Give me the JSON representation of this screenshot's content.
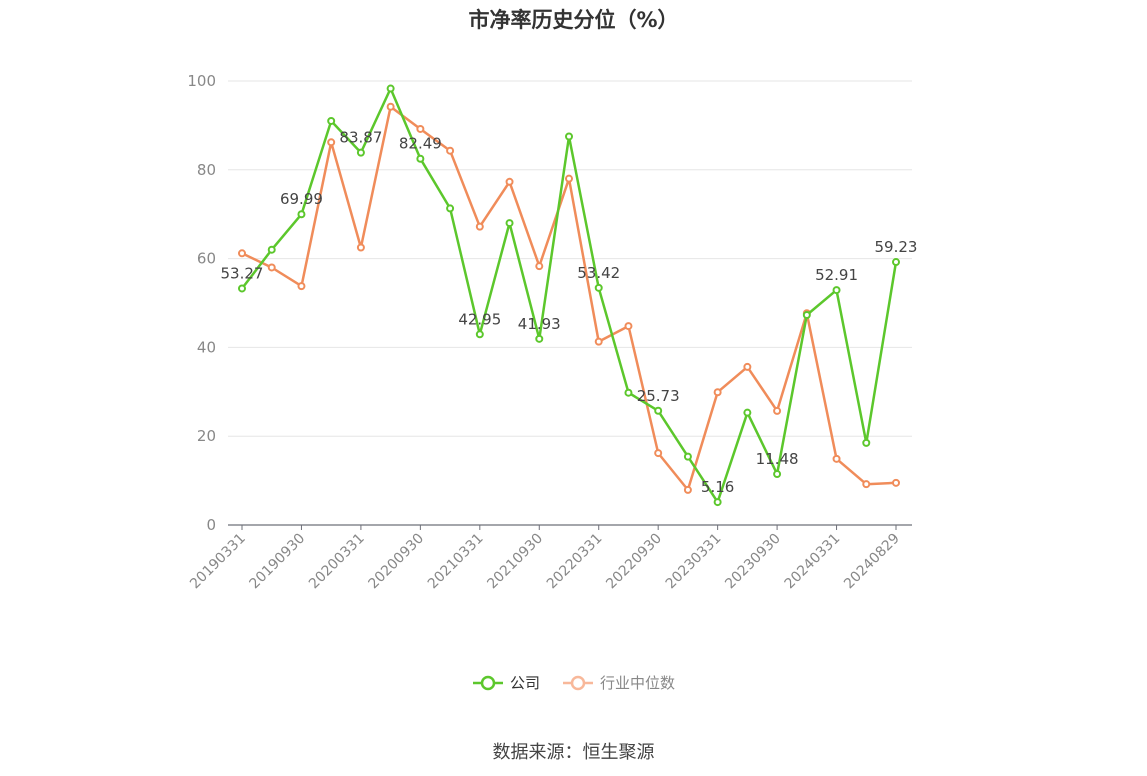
{
  "chart_data": {
    "type": "line",
    "title": "市净率历史分位（%）",
    "xlabel": "",
    "ylabel": "",
    "ylim": [
      0,
      100
    ],
    "yticks": [
      0,
      20,
      40,
      60,
      80,
      100
    ],
    "grid": true,
    "legend_position": "bottom",
    "x": [
      "20190331",
      "20190630",
      "20190930",
      "20191231",
      "20200331",
      "20200630",
      "20200930",
      "20201231",
      "20210331",
      "20210630",
      "20210930",
      "20211231",
      "20220331",
      "20220630",
      "20220930",
      "20221231",
      "20230331",
      "20230630",
      "20230930",
      "20231231",
      "20240331",
      "20240630",
      "20240829"
    ],
    "x_tick_labels": [
      "20190331",
      "20190930",
      "20200331",
      "20200930",
      "20210331",
      "20210930",
      "20220331",
      "20220930",
      "20230331",
      "20230930",
      "20240331",
      "20240829"
    ],
    "series": [
      {
        "name": "公司",
        "color": "#5cc72c",
        "values": [
          53.27,
          62,
          69.99,
          91,
          83.87,
          98.3,
          82.49,
          71.3,
          42.95,
          68,
          41.93,
          87.5,
          53.42,
          29.8,
          25.73,
          15.4,
          5.16,
          25.3,
          11.48,
          47.3,
          52.91,
          18.5,
          59.23
        ],
        "data_labels": [
          {
            "index": 0,
            "text": "53.27"
          },
          {
            "index": 2,
            "text": "69.99"
          },
          {
            "index": 4,
            "text": "83.87"
          },
          {
            "index": 6,
            "text": "82.49"
          },
          {
            "index": 8,
            "text": "42.95"
          },
          {
            "index": 10,
            "text": "41.93"
          },
          {
            "index": 12,
            "text": "53.42"
          },
          {
            "index": 14,
            "text": "25.73"
          },
          {
            "index": 16,
            "text": "5.16"
          },
          {
            "index": 18,
            "text": "11.48"
          },
          {
            "index": 20,
            "text": "52.91"
          },
          {
            "index": 22,
            "text": "59.23"
          }
        ]
      },
      {
        "name": "行业中位数",
        "color": "#f08c5a",
        "values": [
          61.2,
          58,
          53.8,
          86.2,
          62.5,
          94.2,
          89.2,
          84.3,
          67.2,
          77.3,
          58.3,
          78,
          41.3,
          44.8,
          16.2,
          7.9,
          29.9,
          35.6,
          25.7,
          47.7,
          14.9,
          9.2,
          9.5
        ]
      }
    ]
  },
  "source": "数据来源：恒生聚源"
}
